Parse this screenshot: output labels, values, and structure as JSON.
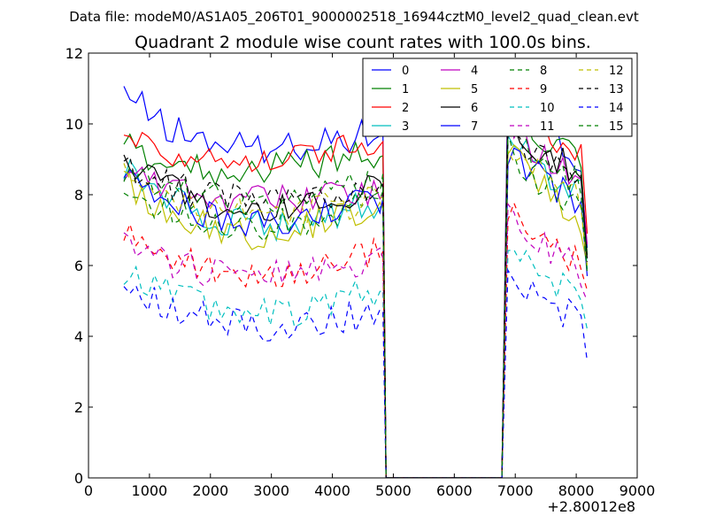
{
  "figure": {
    "suptitle": "Data file: modeM0/AS1A05_206T01_9000002518_16944cztM0_level2_quad_clean.evt"
  },
  "chart_data": {
    "type": "line",
    "title": "Quadrant 2 module wise count rates with 100.0s bins.",
    "xlabel": "",
    "ylabel": "",
    "x_offset_label": "+2.80012e8",
    "xlim": [
      0,
      9000
    ],
    "ylim": [
      0,
      12
    ],
    "xticks": [
      0,
      1000,
      2000,
      3000,
      4000,
      5000,
      6000,
      7000,
      8000,
      9000
    ],
    "xtick_labels": [
      "0",
      "1000",
      "2000",
      "3000",
      "4000",
      "5000",
      "6000",
      "7000",
      "8000",
      "9000"
    ],
    "yticks": [
      0,
      2,
      4,
      6,
      8,
      10,
      12
    ],
    "ytick_labels": [
      "0",
      "2",
      "4",
      "6",
      "8",
      "10",
      "12"
    ],
    "legend_position": "top-right",
    "legend_columns": 4,
    "segments": [
      {
        "x_start": 580,
        "x_end": 4780
      },
      {
        "x_start": 6880,
        "x_end": 8080
      }
    ],
    "drop_x": [
      4880,
      6780
    ],
    "end_x": 8180,
    "series": [
      {
        "name": "0",
        "color": "#0000ff",
        "dash": "solid",
        "seg1_profile": [
          10.9,
          9.9,
          9.5,
          9.3,
          9.4,
          9.6,
          9.7
        ],
        "seg1_end": 9.7,
        "seg2_profile": [
          11.3,
          10.4,
          9.9,
          9.4,
          8.8
        ],
        "seg2_end": 6.5
      },
      {
        "name": "1",
        "color": "#008000",
        "dash": "solid",
        "seg1_profile": [
          9.4,
          8.9,
          8.7,
          8.7,
          8.8,
          9.0,
          9.1
        ],
        "seg1_end": 9.1,
        "seg2_profile": [
          10.6,
          9.9,
          9.6,
          9.3,
          8.9
        ],
        "seg2_end": 6.3
      },
      {
        "name": "2",
        "color": "#ff0000",
        "dash": "solid",
        "seg1_profile": [
          9.8,
          9.2,
          9.1,
          9.0,
          9.1,
          9.3,
          9.4
        ],
        "seg1_end": 9.5,
        "seg2_profile": [
          10.8,
          10.3,
          9.9,
          9.5,
          9.0
        ],
        "seg2_end": 6.9
      },
      {
        "name": "3",
        "color": "#00bfbf",
        "dash": "solid",
        "seg1_profile": [
          8.7,
          8.0,
          7.4,
          7.1,
          7.2,
          7.5,
          7.7
        ],
        "seg1_end": 7.7,
        "seg2_profile": [
          9.6,
          9.1,
          8.7,
          8.3,
          8.0
        ],
        "seg2_end": 5.9
      },
      {
        "name": "4",
        "color": "#bf00bf",
        "dash": "solid",
        "seg1_profile": [
          8.8,
          8.2,
          7.9,
          7.8,
          7.9,
          8.0,
          8.0
        ],
        "seg1_end": 8.0,
        "seg2_profile": [
          10.0,
          9.5,
          9.1,
          8.8,
          8.5
        ],
        "seg2_end": 6.6
      },
      {
        "name": "5",
        "color": "#bfbf00",
        "dash": "solid",
        "seg1_profile": [
          8.3,
          7.6,
          7.1,
          6.9,
          7.1,
          7.4,
          7.6
        ],
        "seg1_end": 7.6,
        "seg2_profile": [
          9.3,
          8.7,
          8.2,
          7.7,
          7.2
        ],
        "seg2_end": 6.0
      },
      {
        "name": "6",
        "color": "#000000",
        "dash": "solid",
        "seg1_profile": [
          8.9,
          8.3,
          7.8,
          7.5,
          7.7,
          8.0,
          8.2
        ],
        "seg1_end": 8.2,
        "seg2_profile": [
          10.2,
          9.6,
          9.2,
          8.9,
          8.5
        ],
        "seg2_end": 6.2
      },
      {
        "name": "7",
        "color": "#0000ff",
        "dash": "solid",
        "seg1_profile": [
          8.4,
          7.9,
          7.4,
          7.1,
          7.2,
          7.6,
          7.9
        ],
        "seg1_end": 7.9,
        "seg2_profile": [
          9.2,
          8.8,
          8.4,
          8.1,
          7.8
        ],
        "seg2_end": 5.7
      },
      {
        "name": "8",
        "color": "#008000",
        "dash": "dashed",
        "seg1_profile": [
          8.1,
          7.6,
          7.3,
          7.1,
          7.2,
          7.5,
          7.8
        ],
        "seg1_end": 8.1,
        "seg2_profile": [
          9.3,
          8.7,
          8.3,
          7.9,
          7.5
        ],
        "seg2_end": 5.8
      },
      {
        "name": "9",
        "color": "#ff0000",
        "dash": "dashed",
        "seg1_profile": [
          6.9,
          6.3,
          5.9,
          5.7,
          5.8,
          6.1,
          6.4
        ],
        "seg1_end": 6.4,
        "seg2_profile": [
          7.6,
          7.1,
          6.7,
          6.4,
          6.1
        ],
        "seg2_end": 5.3
      },
      {
        "name": "10",
        "color": "#00bfbf",
        "dash": "dashed",
        "seg1_profile": [
          5.8,
          5.3,
          4.9,
          4.6,
          4.7,
          5.0,
          5.3
        ],
        "seg1_end": 5.3,
        "seg2_profile": [
          6.5,
          6.0,
          5.7,
          5.4,
          5.1
        ],
        "seg2_end": 4.2
      },
      {
        "name": "11",
        "color": "#bf00bf",
        "dash": "dashed",
        "seg1_profile": [
          6.5,
          6.1,
          5.8,
          5.7,
          5.8,
          6.0,
          6.2
        ],
        "seg1_end": 6.2,
        "seg2_profile": [
          7.4,
          6.9,
          6.5,
          6.2,
          5.8
        ],
        "seg2_end": 5.0
      },
      {
        "name": "12",
        "color": "#bfbf00",
        "dash": "dashed",
        "seg1_profile": [
          8.6,
          8.0,
          7.6,
          7.4,
          7.5,
          7.7,
          7.9
        ],
        "seg1_end": 7.9,
        "seg2_profile": [
          9.4,
          8.9,
          8.5,
          8.2,
          7.8
        ],
        "seg2_end": 6.0
      },
      {
        "name": "13",
        "color": "#000000",
        "dash": "dashed",
        "seg1_profile": [
          8.8,
          8.3,
          8.0,
          7.8,
          7.9,
          8.1,
          8.3
        ],
        "seg1_end": 8.3,
        "seg2_profile": [
          9.9,
          9.4,
          9.0,
          8.7,
          8.4
        ],
        "seg2_end": 6.1
      },
      {
        "name": "14",
        "color": "#0000ff",
        "dash": "dashed",
        "seg1_profile": [
          5.4,
          4.8,
          4.5,
          4.3,
          4.3,
          4.5,
          4.7
        ],
        "seg1_end": 4.7,
        "seg2_profile": [
          6.0,
          5.4,
          5.0,
          4.7,
          4.4
        ],
        "seg2_end": 3.3
      },
      {
        "name": "15",
        "color": "#008000",
        "dash": "dashed",
        "seg1_profile": [
          8.5,
          8.1,
          7.9,
          7.8,
          7.9,
          8.1,
          8.3
        ],
        "seg1_end": 8.6,
        "seg2_profile": [
          9.7,
          9.2,
          8.9,
          8.6,
          8.3
        ],
        "seg2_end": 5.8
      }
    ]
  }
}
